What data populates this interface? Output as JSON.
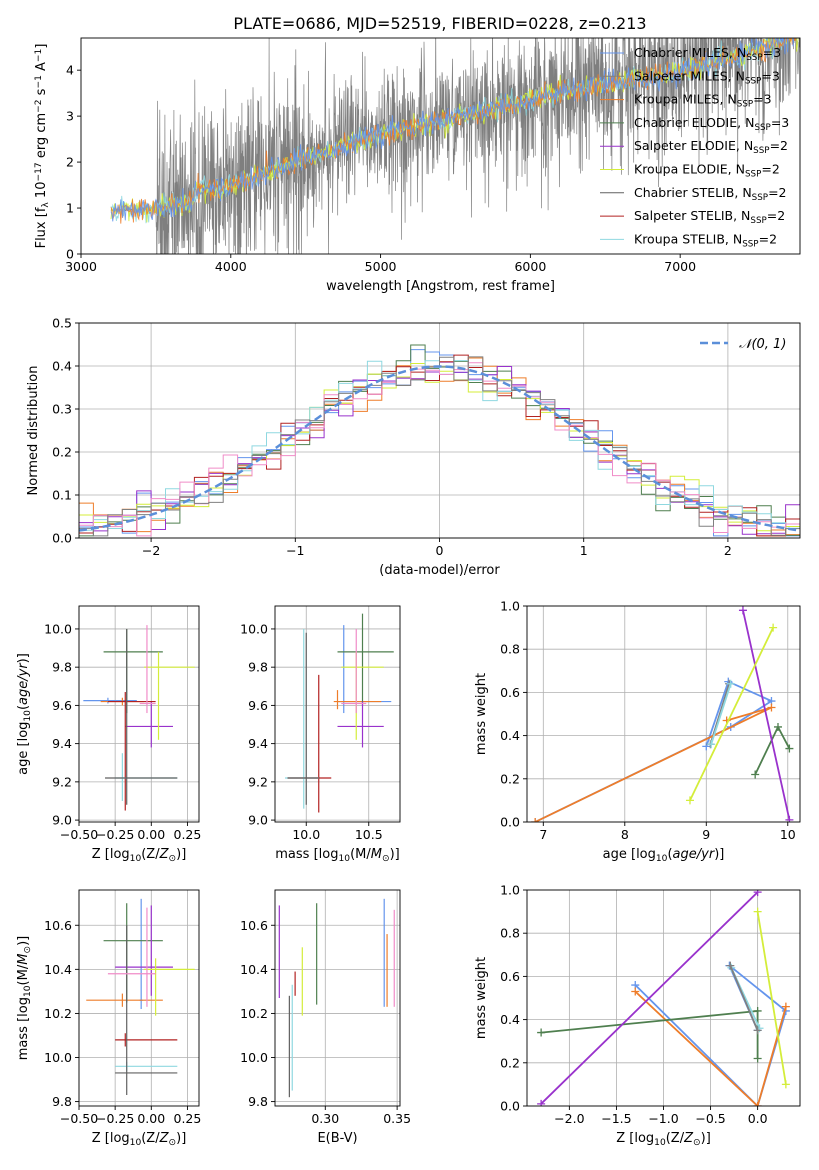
{
  "figure": {
    "title": "PLATE=0686, MJD=52519, FIBERID=0228, z=0.213"
  },
  "colors": {
    "miles_chabrier": "#6495ed",
    "miles_salpeter": "#808080",
    "miles_kroupa": "#ee7d2a",
    "elodie_chabrier": "#4f7f4f",
    "elodie_salpeter": "#9932cc",
    "elodie_kroupa": "#d4ed3a",
    "stelib_chabrier": "#606060",
    "stelib_salpeter": "#b22222",
    "stelib_kroupa": "#8fd8e0",
    "hist_pink": "#f08cc8",
    "grid": "#b0b0b0"
  },
  "chart_data": [
    {
      "id": "spectrum",
      "type": "line",
      "title": "PLATE=0686, MJD=52519, FIBERID=0228, z=0.213",
      "xlabel": "wavelength [Angstrom, rest frame]",
      "ylabel": "Flux [f_λ 10^-17 erg cm^-2 s^-1 A^-1]",
      "xlim": [
        3000,
        7800
      ],
      "ylim": [
        0,
        4.7
      ],
      "xticks": [
        3000,
        4000,
        5000,
        6000,
        7000
      ],
      "yticks": [
        0,
        1,
        2,
        3,
        4
      ],
      "grid": false,
      "legend_position": "top-right",
      "continuum": [
        [
          3200,
          0.95
        ],
        [
          3500,
          1.0
        ],
        [
          3700,
          1.1
        ],
        [
          3900,
          1.3
        ],
        [
          4000,
          1.5
        ],
        [
          4200,
          1.75
        ],
        [
          4500,
          2.1
        ],
        [
          4800,
          2.4
        ],
        [
          5000,
          2.6
        ],
        [
          5400,
          2.9
        ],
        [
          5800,
          3.2
        ],
        [
          6200,
          3.5
        ],
        [
          6600,
          3.75
        ],
        [
          7000,
          3.95
        ],
        [
          7400,
          4.3
        ],
        [
          7800,
          4.8
        ]
      ],
      "series": [
        {
          "name": "Chabrier MILES, N_SSP=3",
          "color_key": "miles_chabrier"
        },
        {
          "name": "Salpeter MILES, N_SSP=3",
          "color_key": "miles_salpeter"
        },
        {
          "name": "Kroupa MILES, N_SSP=3",
          "color_key": "miles_kroupa"
        },
        {
          "name": "Chabrier ELODIE, N_SSP=3",
          "color_key": "elodie_chabrier"
        },
        {
          "name": "Salpeter ELODIE, N_SSP=2",
          "color_key": "elodie_salpeter"
        },
        {
          "name": "Kroupa ELODIE, N_SSP=2",
          "color_key": "elodie_kroupa"
        },
        {
          "name": "Chabrier STELIB, N_SSP=2",
          "color_key": "stelib_chabrier"
        },
        {
          "name": "Salpeter STELIB, N_SSP=2",
          "color_key": "stelib_salpeter"
        },
        {
          "name": "Kroupa STELIB, N_SSP=2",
          "color_key": "stelib_kroupa"
        }
      ]
    },
    {
      "id": "residuals",
      "type": "line",
      "xlabel": "(data-model)/error",
      "ylabel": "Normed distribution",
      "xlim": [
        -2.5,
        2.5
      ],
      "ylim": [
        0,
        0.5
      ],
      "xticks": [
        -2,
        -1,
        0,
        1,
        2
      ],
      "yticks": [
        0.0,
        0.1,
        0.2,
        0.3,
        0.4,
        0.5
      ],
      "grid": true,
      "legend_position": "top-right",
      "legend_label": "𝒩(0, 1)",
      "bin_width": 0.1,
      "histogram_colors": [
        "miles_chabrier",
        "miles_kroupa",
        "elodie_chabrier",
        "elodie_salpeter",
        "elodie_kroupa",
        "stelib_salpeter",
        "stelib_kroupa",
        "hist_pink",
        "miles_salpeter"
      ]
    },
    {
      "id": "age_vs_Z",
      "type": "scatter",
      "xlabel": "Z [log10(Z/Z⊙)]",
      "ylabel": "age  [log10(age/yr)]",
      "xlim": [
        -0.5,
        0.33
      ],
      "ylim": [
        8.99,
        10.12
      ],
      "xticks": [
        -0.5,
        -0.25,
        0.0,
        0.25
      ],
      "yticks": [
        9.0,
        9.2,
        9.4,
        9.6,
        9.8,
        10.0
      ],
      "grid": true,
      "errorbars": [
        {
          "x": -0.3,
          "x0": -0.47,
          "x1": -0.1,
          "y": 9.625,
          "y0": 9.61,
          "y1": 9.64,
          "c": "miles_chabrier"
        },
        {
          "x": -0.2,
          "x0": -0.35,
          "x1": -0.05,
          "y": 9.62,
          "y0": 9.6,
          "y1": 9.64,
          "c": "miles_kroupa"
        },
        {
          "x": -0.17,
          "x0": -0.33,
          "x1": 0.08,
          "y": 9.88,
          "y0": 9.56,
          "y1": 10.0,
          "c": "elodie_chabrier"
        },
        {
          "x": 0.0,
          "x0": -0.18,
          "x1": 0.15,
          "y": 9.49,
          "y0": 9.38,
          "y1": 9.62,
          "c": "elodie_salpeter"
        },
        {
          "x": 0.05,
          "x0": -0.05,
          "x1": 0.3,
          "y": 9.8,
          "y0": 9.42,
          "y1": 9.88,
          "c": "elodie_kroupa"
        },
        {
          "x": -0.18,
          "x0": -0.3,
          "x1": 0.03,
          "y": 9.62,
          "y0": 9.05,
          "y1": 9.67,
          "c": "stelib_salpeter"
        },
        {
          "x": -0.2,
          "x0": -0.25,
          "x1": 0.18,
          "y": 9.22,
          "y0": 9.1,
          "y1": 9.35,
          "c": "stelib_kroupa"
        },
        {
          "x": -0.17,
          "x0": -0.32,
          "x1": 0.18,
          "y": 9.22,
          "y0": 9.08,
          "y1": 10.0,
          "c": "stelib_chabrier"
        },
        {
          "x": -0.03,
          "x0": -0.08,
          "x1": 0.03,
          "y": 9.61,
          "y0": 9.56,
          "y1": 10.02,
          "c": "hist_pink"
        }
      ]
    },
    {
      "id": "age_vs_mass",
      "type": "scatter",
      "xlabel": "mass [log10(M/M⊙)]",
      "ylabel": "",
      "xlim": [
        9.75,
        10.75
      ],
      "ylim": [
        8.99,
        10.12
      ],
      "xticks": [
        10.0,
        10.5
      ],
      "yticks": [
        9.0,
        9.2,
        9.4,
        9.6,
        9.8,
        10.0
      ],
      "grid": true,
      "errorbars": [
        {
          "x": 10.3,
          "x0": 10.25,
          "x1": 10.68,
          "y": 9.62,
          "y0": 9.56,
          "y1": 10.02,
          "c": "miles_chabrier"
        },
        {
          "x": 10.25,
          "x0": 10.22,
          "x1": 10.6,
          "y": 9.62,
          "y0": 9.58,
          "y1": 9.68,
          "c": "miles_kroupa"
        },
        {
          "x": 10.45,
          "x0": 10.25,
          "x1": 10.7,
          "y": 9.88,
          "y0": 9.6,
          "y1": 10.08,
          "c": "elodie_chabrier"
        },
        {
          "x": 10.45,
          "x0": 10.25,
          "x1": 10.62,
          "y": 9.49,
          "y0": 9.38,
          "y1": 9.62,
          "c": "elodie_salpeter"
        },
        {
          "x": 10.4,
          "x0": 10.28,
          "x1": 10.62,
          "y": 9.8,
          "y0": 9.42,
          "y1": 9.88,
          "c": "elodie_kroupa"
        },
        {
          "x": 10.1,
          "x0": 9.85,
          "x1": 10.2,
          "y": 9.22,
          "y0": 9.04,
          "y1": 9.76,
          "c": "stelib_salpeter"
        },
        {
          "x": 9.98,
          "x0": 9.83,
          "x1": 10.1,
          "y": 9.22,
          "y0": 9.06,
          "y1": 10.0,
          "c": "stelib_kroupa"
        },
        {
          "x": 10.0,
          "x0": 9.85,
          "x1": 10.1,
          "y": 9.22,
          "y0": 9.08,
          "y1": 9.98,
          "c": "stelib_chabrier"
        },
        {
          "x": 10.4,
          "x0": 10.28,
          "x1": 10.48,
          "y": 9.61,
          "y0": 9.56,
          "y1": 10.0,
          "c": "hist_pink"
        }
      ]
    },
    {
      "id": "weight_vs_age",
      "type": "line",
      "xlabel": "age  [log10(age/yr)]",
      "ylabel": "mass weight",
      "xlim": [
        6.8,
        10.15
      ],
      "ylim": [
        0.0,
        1.0
      ],
      "xticks": [
        7,
        8,
        9,
        10
      ],
      "yticks": [
        0.0,
        0.2,
        0.4,
        0.6,
        0.8,
        1.0
      ],
      "grid": true,
      "series": [
        {
          "name": "Chabrier MILES",
          "c": "miles_chabrier",
          "x": [
            6.9,
            9.3,
            9.8,
            9.27,
            9.0
          ],
          "y": [
            0.0,
            0.44,
            0.56,
            0.65,
            0.35
          ]
        },
        {
          "name": "Salpeter MILES",
          "c": "miles_salpeter",
          "x": [
            9.05,
            9.28
          ],
          "y": [
            0.36,
            0.64
          ]
        },
        {
          "name": "Kroupa MILES",
          "c": "miles_kroupa",
          "x": [
            6.9,
            9.8,
            9.25
          ],
          "y": [
            0.0,
            0.53,
            0.47
          ]
        },
        {
          "name": "Chabrier ELODIE",
          "c": "elodie_chabrier",
          "x": [
            9.6,
            9.88,
            10.02
          ],
          "y": [
            0.22,
            0.44,
            0.34
          ]
        },
        {
          "name": "Salpeter ELODIE",
          "c": "elodie_salpeter",
          "x": [
            9.45,
            10.02
          ],
          "y": [
            0.98,
            0.01
          ]
        },
        {
          "name": "Kroupa ELODIE",
          "c": "elodie_kroupa",
          "x": [
            8.8,
            9.82
          ],
          "y": [
            0.1,
            0.9
          ]
        },
        {
          "name": "Kroupa STELIB",
          "c": "stelib_kroupa",
          "x": [
            9.06,
            9.3
          ],
          "y": [
            0.36,
            0.64
          ]
        }
      ]
    },
    {
      "id": "mass_vs_Z",
      "type": "scatter",
      "xlabel": "Z [log10(Z/Z⊙)]",
      "ylabel": "mass [log10(M/M⊙)]",
      "xlim": [
        -0.5,
        0.33
      ],
      "ylim": [
        9.78,
        10.76
      ],
      "xticks": [
        -0.5,
        -0.25,
        0.0,
        0.25
      ],
      "yticks": [
        9.8,
        10.0,
        10.2,
        10.4,
        10.6
      ],
      "grid": true,
      "errorbars": [
        {
          "x": -0.07,
          "x0": -0.08,
          "x1": -0.06,
          "y": 10.26,
          "y0": 10.22,
          "y1": 10.72,
          "c": "miles_chabrier"
        },
        {
          "x": -0.2,
          "x0": -0.45,
          "x1": 0.08,
          "y": 10.26,
          "y0": 10.23,
          "y1": 10.29,
          "c": "miles_kroupa"
        },
        {
          "x": -0.17,
          "x0": -0.33,
          "x1": 0.08,
          "y": 10.53,
          "y0": 10.25,
          "y1": 10.7,
          "c": "elodie_chabrier"
        },
        {
          "x": 0.0,
          "x0": -0.25,
          "x1": 0.15,
          "y": 10.41,
          "y0": 10.28,
          "y1": 10.69,
          "c": "elodie_salpeter"
        },
        {
          "x": 0.03,
          "x0": -0.05,
          "x1": 0.3,
          "y": 10.4,
          "y0": 10.19,
          "y1": 10.45,
          "c": "elodie_kroupa"
        },
        {
          "x": -0.18,
          "x0": -0.25,
          "x1": 0.18,
          "y": 10.08,
          "y0": 10.05,
          "y1": 10.11,
          "c": "stelib_salpeter"
        },
        {
          "x": -0.17,
          "x0": -0.25,
          "x1": 0.18,
          "y": 9.96,
          "y0": 9.94,
          "y1": 9.98,
          "c": "stelib_kroupa"
        },
        {
          "x": -0.17,
          "x0": -0.25,
          "x1": 0.18,
          "y": 9.93,
          "y0": 9.83,
          "y1": 10.6,
          "c": "stelib_chabrier"
        },
        {
          "x": -0.03,
          "x0": -0.3,
          "x1": 0.03,
          "y": 10.38,
          "y0": 10.23,
          "y1": 10.68,
          "c": "hist_pink"
        }
      ]
    },
    {
      "id": "mass_vs_ebv",
      "type": "scatter",
      "xlabel": "E(B-V)",
      "ylabel": "",
      "xlim": [
        0.265,
        0.352
      ],
      "ylim": [
        9.78,
        10.76
      ],
      "xticks": [
        0.3,
        0.35
      ],
      "yticks": [
        9.8,
        10.0,
        10.2,
        10.4,
        10.6
      ],
      "grid": true,
      "errorbars": [
        {
          "x": 0.341,
          "y0": 10.23,
          "y1": 10.72,
          "c": "miles_chabrier"
        },
        {
          "x": 0.343,
          "y0": 10.23,
          "y1": 10.56,
          "c": "miles_kroupa"
        },
        {
          "x": 0.294,
          "y0": 10.24,
          "y1": 10.7,
          "c": "elodie_chabrier"
        },
        {
          "x": 0.268,
          "y0": 10.27,
          "y1": 10.69,
          "c": "elodie_salpeter"
        },
        {
          "x": 0.284,
          "y0": 10.19,
          "y1": 10.5,
          "c": "elodie_kroupa"
        },
        {
          "x": 0.279,
          "y0": 10.28,
          "y1": 10.39,
          "c": "stelib_salpeter"
        },
        {
          "x": 0.277,
          "y0": 9.85,
          "y1": 10.33,
          "c": "stelib_kroupa"
        },
        {
          "x": 0.275,
          "y0": 9.82,
          "y1": 10.28,
          "c": "stelib_chabrier"
        },
        {
          "x": 0.348,
          "y0": 10.23,
          "y1": 10.67,
          "c": "hist_pink"
        }
      ]
    },
    {
      "id": "weight_vs_Z",
      "type": "line",
      "xlabel": "Z [log10(Z/Z⊙)]",
      "ylabel": "mass weight",
      "xlim": [
        -2.45,
        0.45
      ],
      "ylim": [
        0.0,
        1.0
      ],
      "xticks": [
        -2.0,
        -1.5,
        -1.0,
        -0.5,
        0.0
      ],
      "yticks": [
        0.0,
        0.2,
        0.4,
        0.6,
        0.8,
        1.0
      ],
      "grid": true,
      "series": [
        {
          "name": "Chabrier MILES",
          "c": "miles_chabrier",
          "x": [
            -1.3,
            0.0,
            0.3,
            -0.3,
            0.0
          ],
          "y": [
            0.56,
            0.0,
            0.44,
            0.65,
            0.35
          ]
        },
        {
          "name": "Kroupa MILES",
          "c": "miles_kroupa",
          "x": [
            -1.3,
            0.0,
            0.3
          ],
          "y": [
            0.53,
            0.0,
            0.46
          ]
        },
        {
          "name": "Chabrier ELODIE",
          "c": "elodie_chabrier",
          "x": [
            -2.3,
            0.0,
            0.0
          ],
          "y": [
            0.34,
            0.44,
            0.22
          ]
        },
        {
          "name": "Salpeter ELODIE",
          "c": "elodie_salpeter",
          "x": [
            -2.3,
            0.0
          ],
          "y": [
            0.01,
            0.99
          ]
        },
        {
          "name": "Kroupa ELODIE",
          "c": "elodie_kroupa",
          "x": [
            0.0,
            0.3
          ],
          "y": [
            0.9,
            0.1
          ]
        },
        {
          "name": "Kroupa STELIB",
          "c": "stelib_kroupa",
          "x": [
            -0.28,
            0.02
          ],
          "y": [
            0.64,
            0.36
          ]
        },
        {
          "name": "Salpeter MILES",
          "c": "miles_salpeter",
          "x": [
            -0.29,
            0.0
          ],
          "y": [
            0.65,
            0.35
          ]
        }
      ]
    }
  ]
}
